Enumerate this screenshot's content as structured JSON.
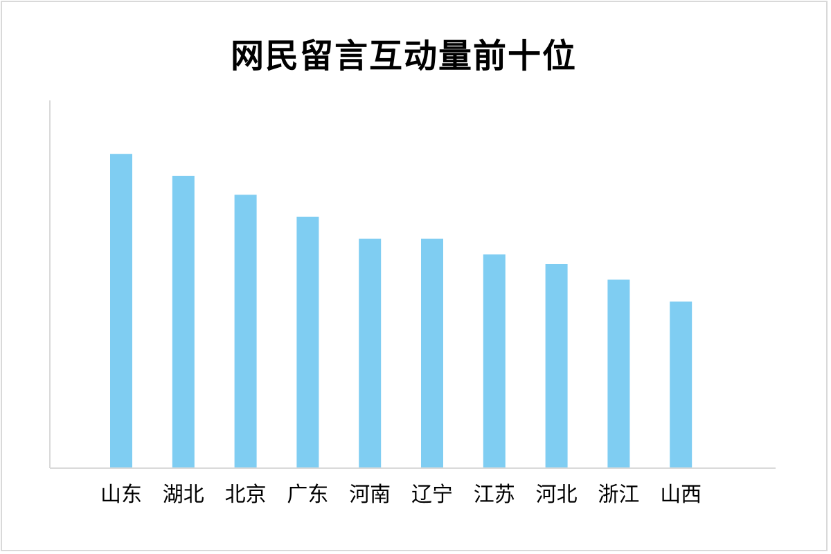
{
  "chart_data": {
    "type": "bar",
    "title": "网民留言互动量前十位",
    "xlabel": "",
    "ylabel": "",
    "categories": [
      "山东",
      "湖北",
      "北京",
      "广东",
      "河南",
      "辽宁",
      "江苏",
      "河北",
      "浙江",
      "山西"
    ],
    "values": [
      100,
      93,
      87,
      80,
      73,
      73,
      68,
      65,
      60,
      53
    ],
    "ylim": [
      0,
      117
    ],
    "grid": false,
    "legend": "none",
    "y_axis_visible": false,
    "bar_color": "#7fcdf2",
    "axis_color": "#d9d9d9"
  }
}
